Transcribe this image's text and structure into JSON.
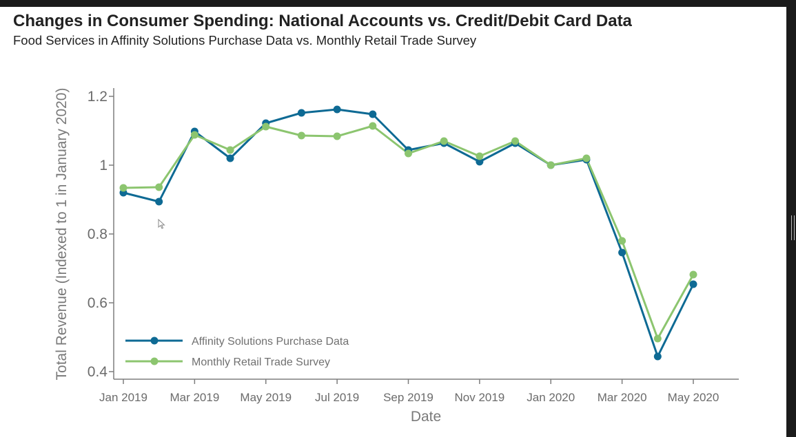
{
  "chart_data": {
    "type": "line",
    "title": "Changes in Consumer Spending: National Accounts vs. Credit/Debit Card Data",
    "subtitle": "Food Services in Affinity Solutions Purchase Data vs. Monthly Retail Trade Survey",
    "xlabel": "Date",
    "ylabel": "Total Revenue (Indexed to 1 in January 2020)",
    "x": [
      "Jan 2019",
      "Feb 2019",
      "Mar 2019",
      "Apr 2019",
      "May 2019",
      "Jun 2019",
      "Jul 2019",
      "Aug 2019",
      "Sep 2019",
      "Oct 2019",
      "Nov 2019",
      "Dec 2019",
      "Jan 2020",
      "Feb 2020",
      "Mar 2020",
      "Apr 2020",
      "May 2020"
    ],
    "x_tick_labels": [
      "Jan 2019",
      "Mar 2019",
      "May 2019",
      "Jul 2019",
      "Sep 2019",
      "Nov 2019",
      "Jan 2020",
      "Mar 2020",
      "May 2020"
    ],
    "y_ticks": [
      0.4,
      0.6,
      0.8,
      1,
      1.2
    ],
    "y_tick_labels": [
      "0.4",
      "0.6",
      "0.8",
      "1",
      "1.2"
    ],
    "ylim": [
      0.38,
      1.225
    ],
    "grid": false,
    "legend_position": "bottom-left",
    "series": [
      {
        "name": "Affinity Solutions Purchase Data",
        "color": "#0e6a94",
        "values": [
          0.92,
          0.894,
          1.098,
          1.02,
          1.122,
          1.152,
          1.162,
          1.148,
          1.044,
          1.064,
          1.01,
          1.064,
          1.0,
          1.016,
          0.746,
          0.444,
          0.654
        ]
      },
      {
        "name": "Monthly Retail Trade Survey",
        "color": "#8cc56f",
        "values": [
          0.934,
          0.936,
          1.088,
          1.044,
          1.112,
          1.086,
          1.084,
          1.114,
          1.034,
          1.07,
          1.026,
          1.07,
          1.0,
          1.02,
          0.78,
          0.496,
          0.682
        ]
      }
    ]
  }
}
